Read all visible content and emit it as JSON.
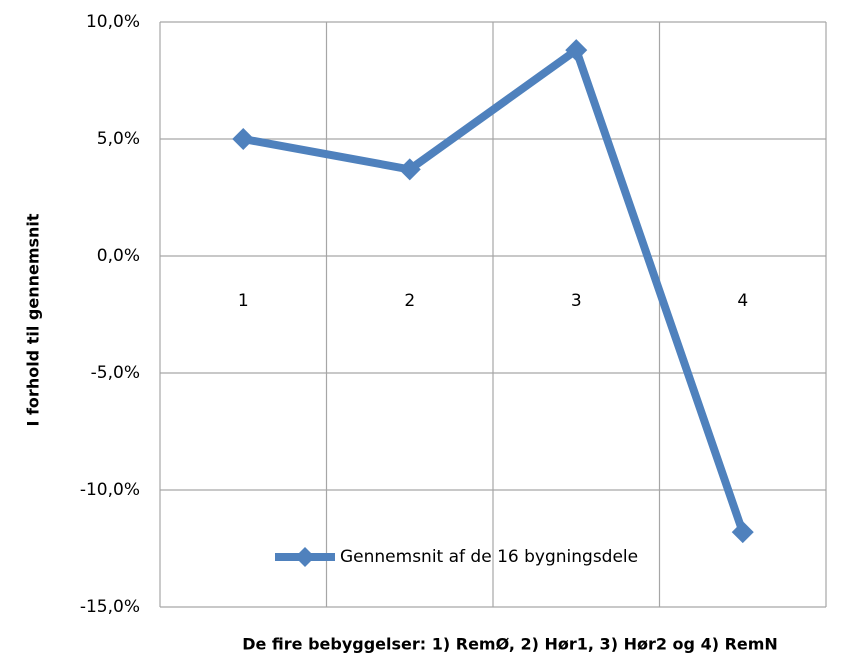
{
  "chart_data": {
    "type": "line",
    "y_label": "I forhold til gennemsnit",
    "x_label": "De fire bebyggelser:  1) RemØ, 2) Hør1, 3) Hør2 og 4) RemN",
    "categories": [
      "1",
      "2",
      "3",
      "4"
    ],
    "series": [
      {
        "name": "Gennemsnit af de 16 bygningsdele",
        "color": "#4f81bd",
        "values": [
          5.0,
          3.7,
          8.8,
          -11.8
        ]
      }
    ],
    "ylim": [
      -15,
      10
    ],
    "yticks": [
      {
        "value": -15,
        "label": "-15,0%"
      },
      {
        "value": -10,
        "label": "-10,0%"
      },
      {
        "value": -5,
        "label": "-5,0%"
      },
      {
        "value": 0,
        "label": "0,0%"
      },
      {
        "value": 5,
        "label": "5,0%"
      },
      {
        "value": 10,
        "label": "10,0%"
      }
    ],
    "grid": true,
    "legend": "bottom"
  }
}
